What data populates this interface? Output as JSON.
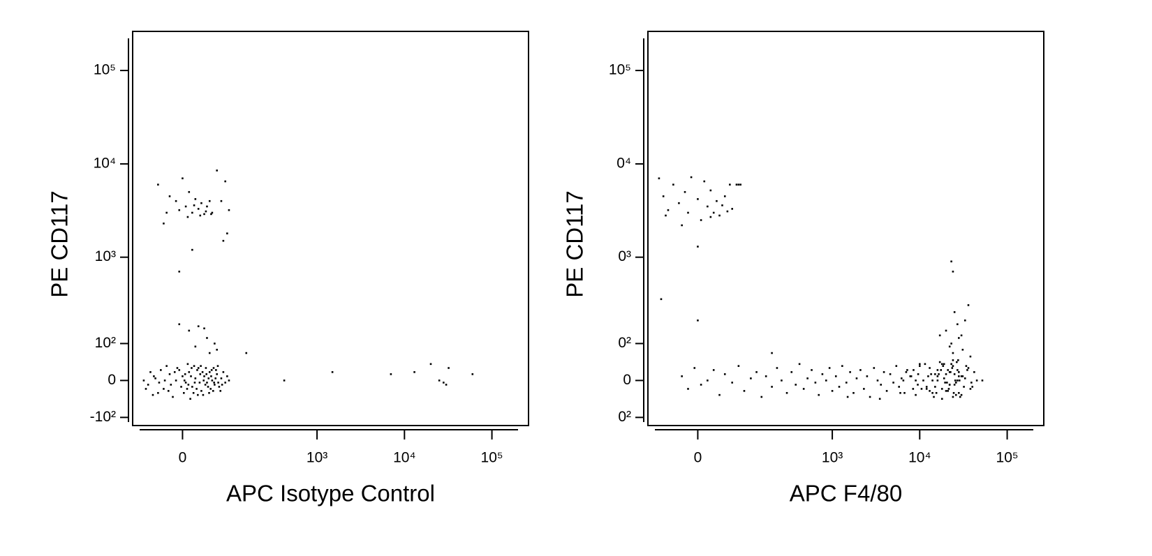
{
  "chart_data": [
    {
      "type": "scatter",
      "xlabel": "APC Isotype Control",
      "ylabel": "PE  CD117",
      "color": "#000000",
      "xscale": "biexponential",
      "yscale": "biexponential",
      "xlim": [
        -100,
        262144
      ],
      "ylim": [
        -130,
        262144
      ],
      "xticks": [
        0,
        {
          "value": 1000,
          "label": "10³"
        },
        {
          "value": 10000,
          "label": "10⁴"
        },
        {
          "value": 100000,
          "label": "10⁵"
        }
      ],
      "yticks": [
        {
          "value": -100,
          "label": "-10²"
        },
        0,
        {
          "value": 100,
          "label": "10²"
        },
        {
          "value": 1000,
          "label": "10³"
        },
        {
          "value": 10000,
          "label": "10⁴"
        },
        {
          "value": 100000,
          "label": "10⁵"
        }
      ],
      "x": [
        -60,
        -45,
        -30,
        -20,
        -10,
        0,
        5,
        10,
        15,
        20,
        25,
        30,
        35,
        40,
        45,
        50,
        55,
        60,
        70,
        80,
        -70,
        -55,
        -40,
        -25,
        -15,
        -5,
        2,
        8,
        12,
        18,
        22,
        28,
        33,
        38,
        42,
        48,
        52,
        58,
        65,
        75,
        -50,
        -35,
        -28,
        -18,
        -8,
        3,
        7,
        13,
        17,
        23,
        27,
        32,
        37,
        43,
        47,
        53,
        57,
        63,
        68,
        85,
        -65,
        -48,
        -38,
        -22,
        -12,
        -2,
        4,
        9,
        14,
        19,
        24,
        29,
        34,
        39,
        44,
        49,
        54,
        62,
        72,
        90,
        -40,
        -20,
        -10,
        0,
        10,
        5,
        15,
        20,
        25,
        30,
        35,
        40,
        45,
        50,
        60,
        -30,
        -25,
        -5,
        8,
        18,
        28,
        38,
        48,
        70,
        80,
        90,
        75,
        85,
        15,
        -5,
        -5,
        10,
        25,
        40,
        35,
        55,
        20,
        45,
        60,
        150,
        420,
        1500,
        7000,
        13000,
        20000,
        25000,
        30000,
        32000,
        28000,
        60000
      ],
      "values": [
        -10,
        5,
        -20,
        15,
        0,
        10,
        -5,
        20,
        -15,
        5,
        30,
        -25,
        10,
        -5,
        20,
        0,
        -10,
        15,
        5,
        -5,
        0,
        20,
        -30,
        35,
        -40,
        25,
        -30,
        40,
        -45,
        35,
        -20,
        15,
        -35,
        30,
        -15,
        10,
        -25,
        25,
        -15,
        20,
        -35,
        25,
        0,
        -10,
        30,
        0,
        -20,
        10,
        -30,
        25,
        -5,
        20,
        -10,
        5,
        -20,
        30,
        5,
        -5,
        -25,
        10,
        -20,
        10,
        -5,
        -25,
        20,
        -15,
        15,
        -10,
        30,
        -5,
        -35,
        35,
        0,
        15,
        -30,
        25,
        -5,
        35,
        -10,
        0,
        6000,
        4500,
        4000,
        7000,
        5000,
        3500,
        3000,
        4200,
        3300,
        3800,
        2900,
        3500,
        4000,
        3000,
        8500,
        2300,
        3000,
        3200,
        2700,
        3600,
        2800,
        3100,
        2900,
        4000,
        6500,
        3200,
        1500,
        1800,
        1200,
        700,
        180,
        150,
        170,
        120,
        160,
        100,
        90,
        70,
        80,
        70,
        0,
        20,
        15,
        20,
        40,
        0,
        -10,
        30,
        -5,
        15
      ]
    },
    {
      "type": "scatter",
      "xlabel": "APC  F4/80",
      "ylabel": "PE  CD117",
      "color": "#000000",
      "xscale": "biexponential",
      "yscale": "biexponential",
      "xlim": [
        -100,
        262144
      ],
      "ylim": [
        -130,
        262144
      ],
      "xticks": [
        0,
        {
          "value": 1000,
          "label": "10³"
        },
        {
          "value": 10000,
          "label": "10⁴"
        },
        {
          "value": 100000,
          "label": "10⁵"
        }
      ],
      "yticks": [
        {
          "value": -100,
          "label": "0²"
        },
        0,
        {
          "value": 100,
          "label": "0²"
        },
        {
          "value": 1000,
          "label": "0³"
        },
        {
          "value": 10000,
          "label": "0⁴"
        },
        {
          "value": 100000,
          "label": "10⁵"
        }
      ],
      "x": [
        -70,
        -60,
        -50,
        -40,
        -30,
        -20,
        -10,
        0,
        5,
        10,
        15,
        20,
        25,
        30,
        35,
        40,
        45,
        50,
        55,
        60,
        -55,
        -25,
        -15,
        0,
        -65,
        0,
        20,
        70,
        75,
        80,
        -25,
        -15,
        -5,
        5,
        15,
        25,
        35,
        45,
        60,
        75,
        90,
        110,
        130,
        150,
        170,
        200,
        230,
        260,
        300,
        340,
        380,
        420,
        470,
        520,
        580,
        640,
        700,
        770,
        850,
        930,
        1000,
        1100,
        1200,
        1300,
        1450,
        1600,
        1750,
        1900,
        2100,
        2300,
        2500,
        2700,
        3000,
        3300,
        3600,
        3900,
        4200,
        4600,
        5000,
        5400,
        5800,
        6200,
        6700,
        7200,
        7800,
        8400,
        9000,
        9600,
        3500,
        1500,
        200,
        6000,
        8000,
        10000,
        12000,
        14000,
        16000,
        18000,
        20000,
        22000,
        24000,
        26000,
        28000,
        30000,
        33000,
        36000,
        40000,
        7000,
        9000,
        11000,
        13000,
        15000,
        17000,
        19000,
        21000,
        23000,
        25000,
        27000,
        29000,
        31000,
        34000,
        38000,
        45000,
        6500,
        8500,
        10500,
        12500,
        14500,
        16500,
        18500,
        20500,
        22500,
        24500,
        26500,
        28500,
        32000,
        35000,
        39000,
        42000,
        9500,
        11500,
        13500,
        15500,
        17500,
        19500,
        21500,
        23500,
        25500,
        27500,
        13000,
        16000,
        19000,
        22000,
        25000,
        28000,
        10000,
        12000,
        14000,
        16000,
        18000,
        20000,
        22000,
        24000,
        26000,
        28000,
        15000,
        18000,
        21000,
        24000,
        27000,
        30000,
        17000,
        20000,
        23000,
        25000,
        27000,
        30000,
        33000,
        36000,
        28000,
        23000,
        24000,
        22000,
        24000,
        31000,
        38000,
        52000
      ],
      "values": [
        7000,
        4500,
        3200,
        6000,
        3800,
        5000,
        7200,
        4200,
        2500,
        6500,
        3500,
        5200,
        3000,
        4000,
        2800,
        3600,
        4500,
        3100,
        6000,
        3300,
        2800,
        2200,
        3000,
        1300,
        350,
        200,
        2700,
        6000,
        6000,
        6000,
        10,
        -20,
        30,
        -10,
        0,
        25,
        -35,
        15,
        -5,
        35,
        -25,
        5,
        20,
        -40,
        10,
        -15,
        30,
        0,
        -30,
        20,
        -10,
        40,
        -20,
        5,
        25,
        -5,
        -35,
        15,
        0,
        30,
        -25,
        10,
        -15,
        35,
        -5,
        20,
        -30,
        5,
        25,
        -20,
        10,
        -40,
        30,
        0,
        -10,
        20,
        -25,
        15,
        -5,
        35,
        -15,
        5,
        -30,
        25,
        10,
        -20,
        0,
        15,
        -45,
        -40,
        70,
        -30,
        10,
        40,
        -20,
        0,
        25,
        -45,
        15,
        -10,
        35,
        -5,
        20,
        -35,
        5,
        30,
        -15,
        20,
        -35,
        0,
        30,
        -15,
        45,
        5,
        -25,
        40,
        -10,
        25,
        -40,
        10,
        35,
        -20,
        0,
        0,
        25,
        -20,
        10,
        -40,
        15,
        35,
        -5,
        20,
        -30,
        45,
        0,
        -15,
        25,
        -5,
        20,
        -10,
        40,
        15,
        -30,
        25,
        -5,
        -20,
        30,
        0,
        50,
        -25,
        10,
        40,
        -10,
        15,
        -30,
        35,
        -15,
        -30,
        0,
        40,
        -25,
        20,
        50,
        -35,
        10,
        15,
        -20,
        25,
        -40,
        0,
        10,
        130,
        150,
        100,
        250,
        180,
        130,
        200,
        300,
        120,
        900,
        700,
        90,
        70,
        80,
        60,
        0
      ]
    }
  ]
}
